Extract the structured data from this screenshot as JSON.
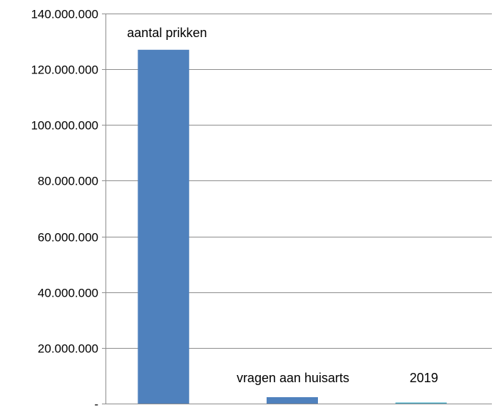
{
  "chart_data": {
    "type": "bar",
    "categories": [
      "aantal prikken",
      "vragen aan huisarts",
      "2019"
    ],
    "values": [
      127000000,
      2300000,
      200000
    ],
    "bar_labels": [
      "aantal prikken",
      "vragen aan huisarts",
      "2019"
    ],
    "bar_colors": [
      "#4f81bd",
      "#4f81bd",
      "#4bacc6"
    ],
    "ylim": [
      0,
      140000000
    ],
    "y_ticks": [
      0,
      20000000,
      40000000,
      60000000,
      80000000,
      100000000,
      120000000,
      140000000
    ],
    "y_tick_labels": [
      "-",
      "20.000.000",
      "40.000.000",
      "60.000.000",
      "80.000.000",
      "100.000.000",
      "120.000.000",
      "140.000.000"
    ],
    "grid": true,
    "title": "",
    "xlabel": "",
    "ylabel": ""
  }
}
